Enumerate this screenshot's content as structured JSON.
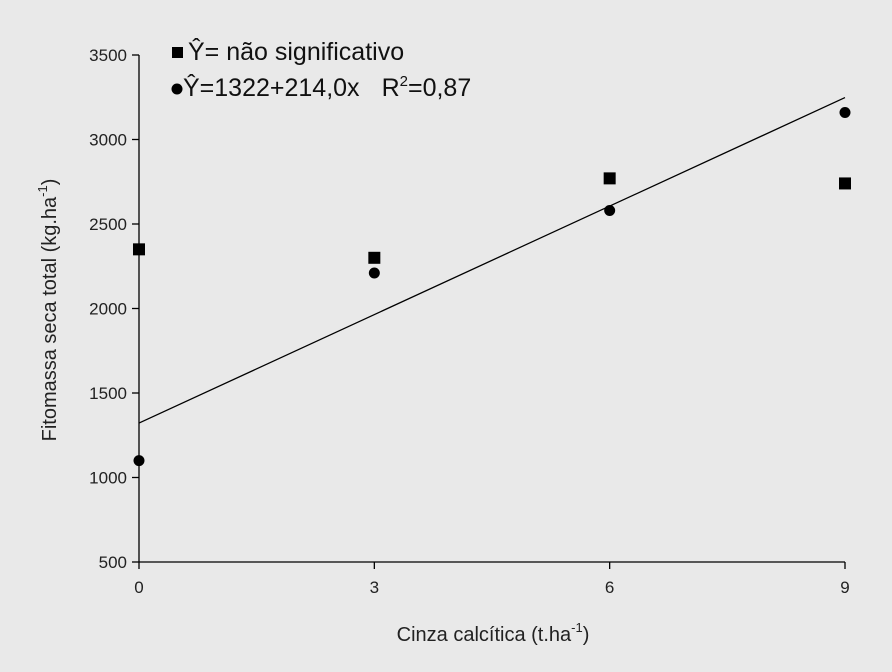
{
  "chart_data": {
    "type": "scatter",
    "xlabel": "Cinza calcítica (t.ha",
    "xlabel_sup": "-1",
    "xlabel_end": ")",
    "ylabel": "Fitomassa seca total (kg.ha",
    "ylabel_sup": "-1",
    "ylabel_end": ")",
    "xlim": [
      0,
      9
    ],
    "ylim": [
      500,
      3500
    ],
    "x_ticks": [
      "0",
      "3",
      "6",
      "9"
    ],
    "y_ticks": [
      "500",
      "1000",
      "1500",
      "2000",
      "2500",
      "3000",
      "3500"
    ],
    "grid": false,
    "legend_position": "top-left",
    "series": [
      {
        "name": "Ŷ= não significativo",
        "marker": "square",
        "x": [
          0,
          3,
          6,
          9
        ],
        "y": [
          2350,
          2300,
          2770,
          2740
        ]
      },
      {
        "name": "Ŷ=1322+214,0x",
        "name_r2": "R",
        "name_r2_sup": "2",
        "name_r2_val": "=0,87",
        "marker": "circle",
        "x": [
          0,
          3,
          6,
          9
        ],
        "y": [
          1100,
          2210,
          2580,
          3160
        ],
        "fit": {
          "intercept": 1322,
          "slope": 214.0
        }
      }
    ]
  }
}
